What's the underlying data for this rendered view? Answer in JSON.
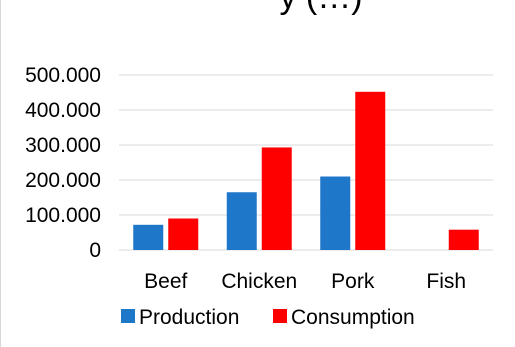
{
  "chart_data": {
    "type": "bar",
    "title": "y (…)",
    "categories": [
      "Beef",
      "Chicken",
      "Pork",
      "Fish"
    ],
    "series": [
      {
        "name": "Production",
        "color": "#1f77c9",
        "values": [
          72000,
          165000,
          210000,
          0
        ]
      },
      {
        "name": "Consumption",
        "color": "#ff0000",
        "values": [
          90000,
          293000,
          452000,
          58000
        ]
      }
    ],
    "yticks": [
      "0",
      "100.000",
      "200.000",
      "300.000",
      "400.000",
      "500.000"
    ],
    "ylim": [
      0,
      500000
    ],
    "grid": true,
    "legend": "bottom"
  }
}
